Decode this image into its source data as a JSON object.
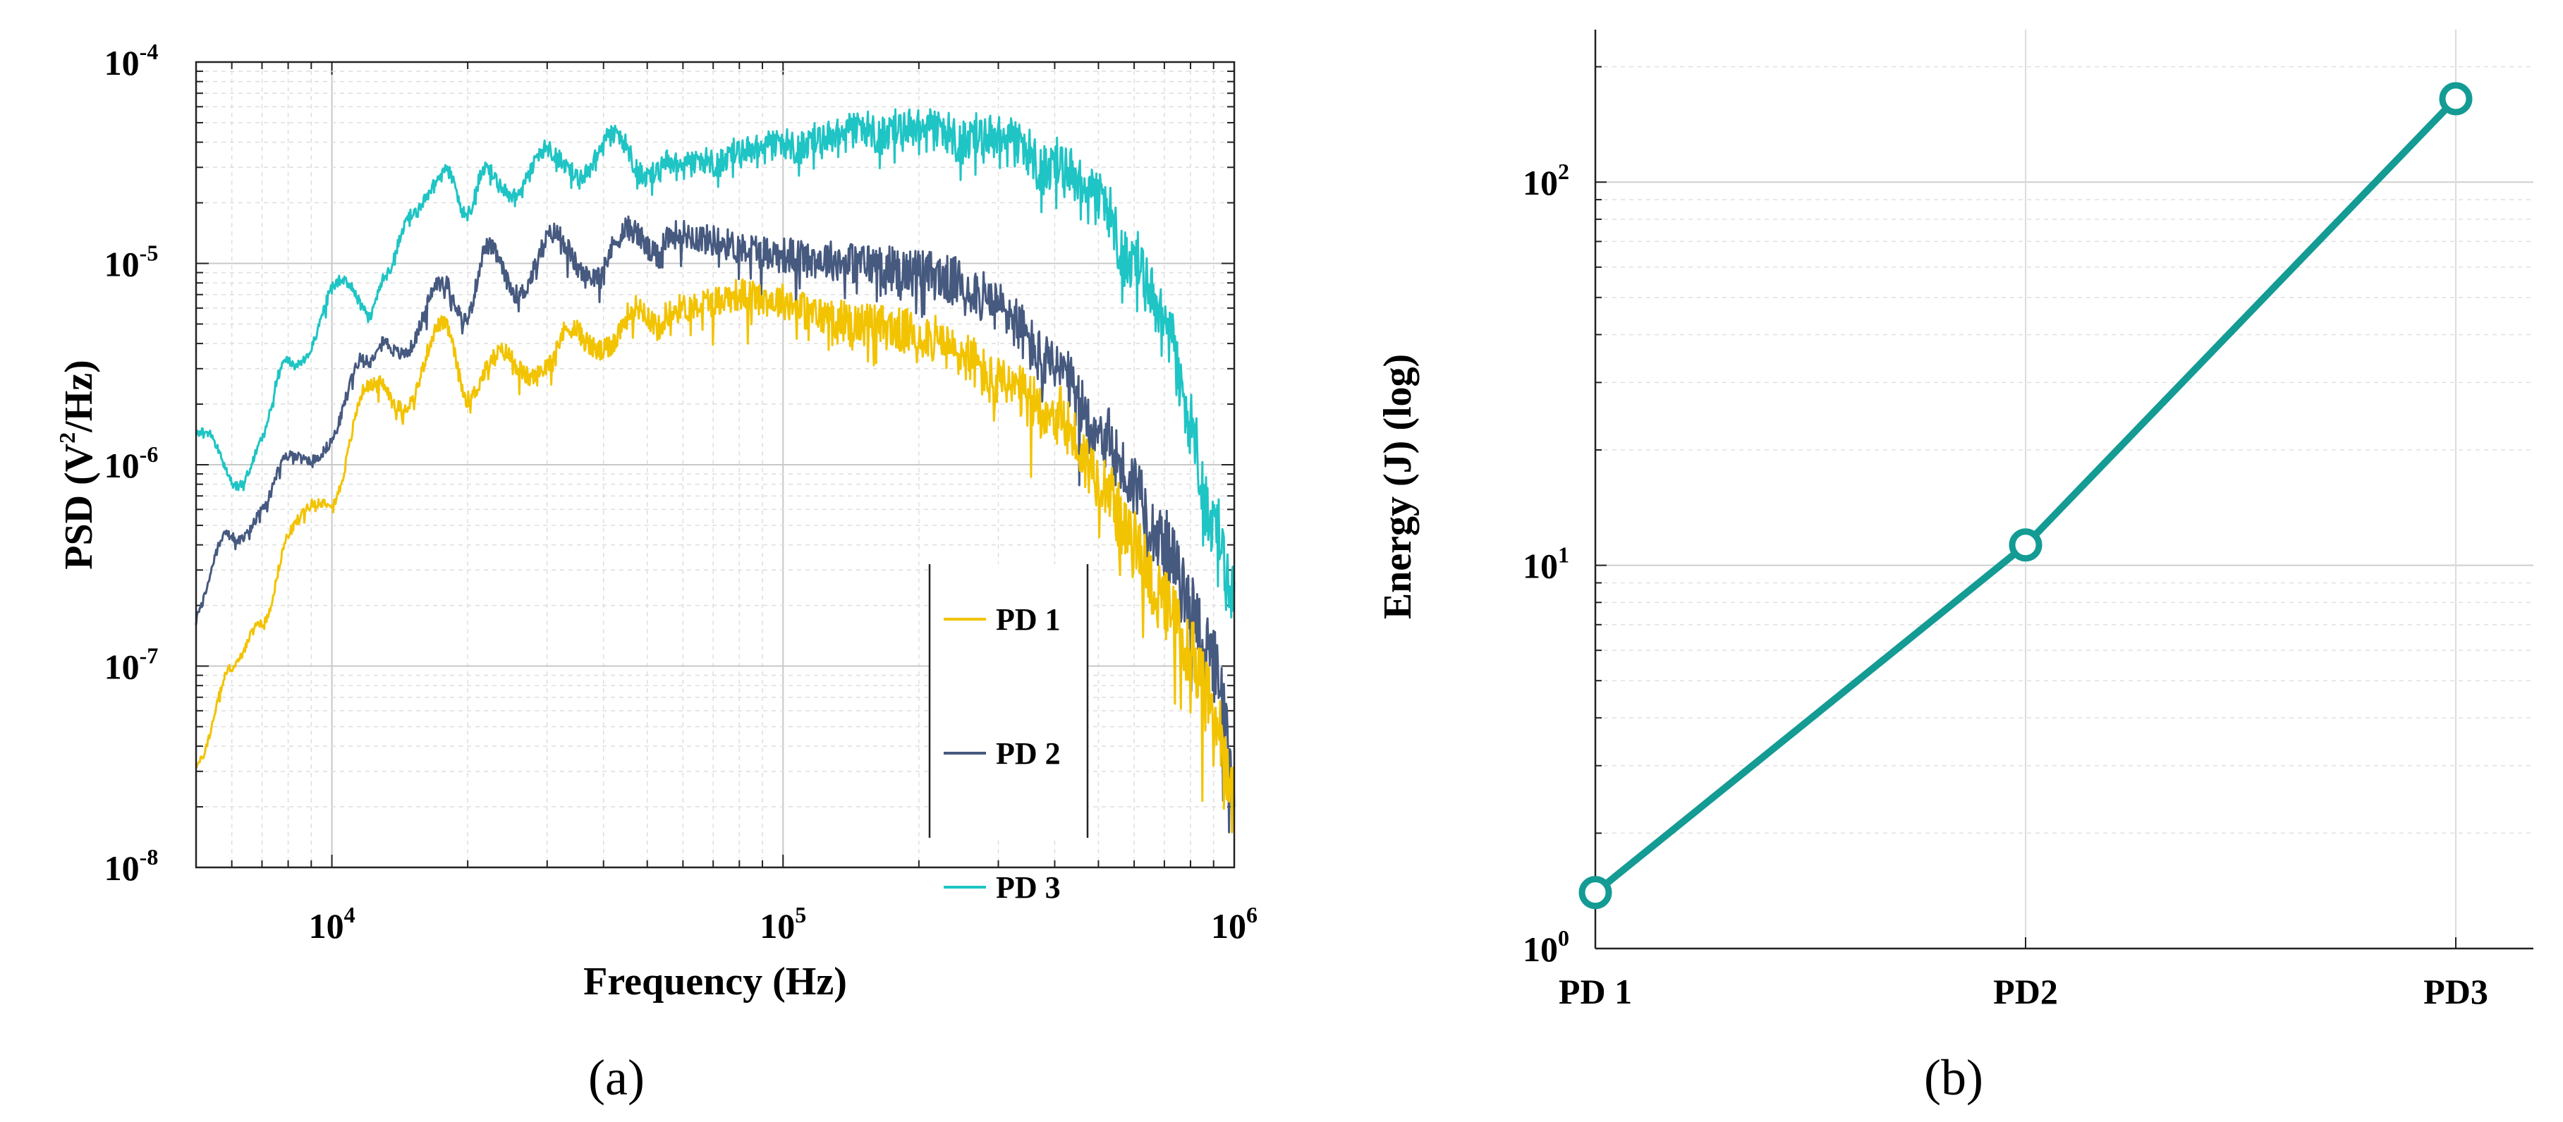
{
  "chart_data": [
    {
      "type": "line",
      "panel": "a",
      "caption": "(a)",
      "x_scale": "log",
      "y_scale": "log",
      "xlabel": "Frequency (Hz)",
      "ylabel": "PSD (V2/Hz)",
      "ylabel_parts": [
        "PSD (V",
        "2",
        "/Hz)"
      ],
      "xlim": [
        5000,
        1000000
      ],
      "ylim": [
        1e-08,
        0.0001
      ],
      "x_tick_labels": [
        {
          "value": 10000,
          "base": "10",
          "exp": "4"
        },
        {
          "value": 100000,
          "base": "10",
          "exp": "5"
        },
        {
          "value": 1000000,
          "base": "10",
          "exp": "6"
        }
      ],
      "y_tick_labels": [
        {
          "value": 1e-08,
          "base": "10",
          "exp": "-8"
        },
        {
          "value": 1e-07,
          "base": "10",
          "exp": "-7"
        },
        {
          "value": 1e-06,
          "base": "10",
          "exp": "-6"
        },
        {
          "value": 1e-05,
          "base": "10",
          "exp": "-5"
        },
        {
          "value": 0.0001,
          "base": "10",
          "exp": "-4"
        }
      ],
      "grid": true,
      "legend_position": "bottom-right",
      "series": [
        {
          "name": "PD 1",
          "color": "#f2c300",
          "x": [
            5000,
            6000,
            7000,
            8000,
            10000,
            12000,
            13000,
            15000,
            18000,
            20000,
            22000,
            25000,
            30000,
            35000,
            40000,
            50000,
            60000,
            70000,
            80000,
            100000,
            120000,
            150000,
            200000,
            250000,
            300000,
            400000,
            500000,
            600000,
            700000,
            800000,
            900000,
            1000000
          ],
          "y": [
            4e-08,
            8e-08,
            2e-07,
            4e-07,
            8e-07,
            2e-06,
            2.5e-06,
            2.3e-06,
            4.5e-06,
            2.6e-06,
            2.9e-06,
            3e-06,
            3.5e-06,
            4e-06,
            4.5e-06,
            5e-06,
            6e-06,
            6.5e-06,
            7e-06,
            6.5e-06,
            5.5e-06,
            5e-06,
            4.5e-06,
            3.5e-06,
            2.5e-06,
            1.8e-06,
            9e-07,
            4e-07,
            2e-07,
            1.2e-07,
            6e-08,
            2e-08
          ]
        },
        {
          "name": "PD 2",
          "color": "#46597f",
          "x": [
            5000,
            6000,
            7000,
            8000,
            10000,
            12000,
            13000,
            15000,
            18000,
            20000,
            22000,
            25000,
            30000,
            35000,
            40000,
            50000,
            60000,
            70000,
            80000,
            100000,
            120000,
            150000,
            200000,
            250000,
            300000,
            400000,
            500000,
            600000,
            700000,
            800000,
            900000,
            1000000
          ],
          "y": [
            2e-07,
            4e-07,
            7e-07,
            9e-07,
            1.5e-06,
            3e-06,
            5e-06,
            3.5e-06,
            9e-06,
            6e-06,
            1e-05,
            8e-06,
            1.2e-05,
            1e-05,
            1.1e-05,
            1.3e-05,
            1.4e-05,
            1.3e-05,
            1.2e-05,
            1.1e-05,
            1.05e-05,
            1e-05,
            9e-06,
            8e-06,
            6e-06,
            3e-06,
            1.5e-06,
            8e-07,
            4e-07,
            2e-07,
            1e-07,
            3e-08
          ]
        },
        {
          "name": "PD 3",
          "color": "#1fc4c4",
          "x": [
            5000,
            6000,
            7000,
            8000,
            10000,
            12000,
            13000,
            15000,
            18000,
            20000,
            22000,
            25000,
            30000,
            35000,
            40000,
            50000,
            60000,
            70000,
            80000,
            100000,
            120000,
            150000,
            200000,
            250000,
            300000,
            400000,
            500000,
            600000,
            700000,
            800000,
            900000,
            1000000
          ],
          "y": [
            1.3e-06,
            9e-07,
            1.3e-06,
            3e-06,
            7e-06,
            6e-06,
            1e-05,
            1.4e-05,
            3.5e-05,
            1.6e-05,
            2.5e-05,
            2.6e-05,
            3e-05,
            3.2e-05,
            3.5e-05,
            3.3e-05,
            3e-05,
            3.2e-05,
            3.5e-05,
            3.8e-05,
            4e-05,
            4.5e-05,
            4.5e-05,
            4.2e-05,
            4e-05,
            3e-05,
            2e-05,
            1e-05,
            5e-06,
            1.5e-06,
            5e-07,
            2e-07
          ]
        }
      ]
    },
    {
      "type": "line",
      "panel": "b",
      "caption": "(b)",
      "y_scale": "log",
      "xlabel": "",
      "ylabel": "Energy (J) (log)",
      "ylim": [
        1,
        250
      ],
      "y_tick_labels": [
        {
          "value": 1,
          "base": "10",
          "exp": "0"
        },
        {
          "value": 10,
          "base": "10",
          "exp": "1"
        },
        {
          "value": 100,
          "base": "10",
          "exp": "2"
        }
      ],
      "grid": true,
      "categories": [
        "PD 1",
        "PD2",
        "PD3"
      ],
      "series": [
        {
          "name": "Energy",
          "color": "#139b94",
          "values": [
            1.4,
            11.3,
            165
          ]
        }
      ]
    }
  ]
}
